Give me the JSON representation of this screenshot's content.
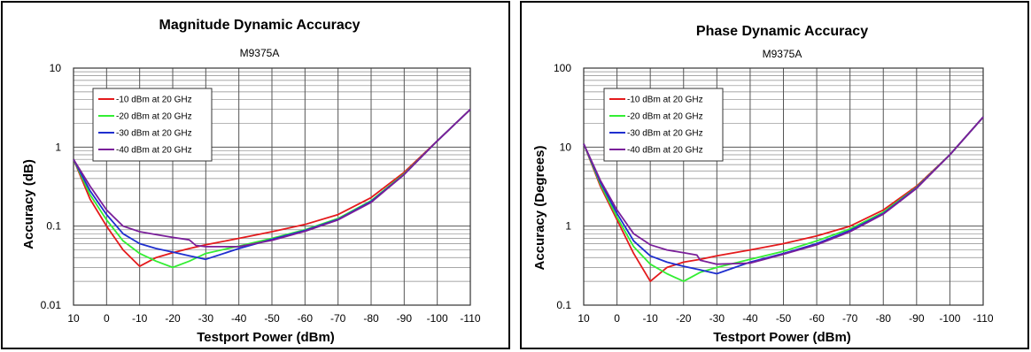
{
  "chart_data": [
    {
      "type": "line",
      "title": "Magnitude Dynamic Accuracy",
      "subtitle": "M9375A",
      "xlabel": "Testport Power (dBm)",
      "ylabel": "Accuracy (dB)",
      "xlim": [
        10,
        -110
      ],
      "ylim": [
        0.01,
        10
      ],
      "yscale": "log",
      "grid": true,
      "legend_position": "top-left",
      "x_ticks": [
        "10",
        "0",
        "-10",
        "-20",
        "-30",
        "-40",
        "-50",
        "-60",
        "-70",
        "-80",
        "-90",
        "-100",
        "-110"
      ],
      "y_ticks": [
        "10",
        "1",
        "0.1",
        "0.01"
      ],
      "series": [
        {
          "name": "-10 dBm at 20 GHz",
          "color": "#e41a1c",
          "x": [
            10,
            5,
            0,
            -5,
            -10,
            -15,
            -20,
            -25,
            -30,
            -40,
            -50,
            -60,
            -70,
            -80,
            -90,
            -100,
            -110
          ],
          "y": [
            0.7,
            0.22,
            0.1,
            0.05,
            0.031,
            0.04,
            0.046,
            0.052,
            0.058,
            0.07,
            0.085,
            0.105,
            0.14,
            0.23,
            0.48,
            1.2,
            3.0
          ]
        },
        {
          "name": "-20 dBm at 20 GHz",
          "color": "#33ee33",
          "x": [
            10,
            5,
            0,
            -5,
            -10,
            -15,
            -20,
            -25,
            -30,
            -40,
            -50,
            -60,
            -70,
            -80,
            -90,
            -100,
            -110
          ],
          "y": [
            0.7,
            0.25,
            0.12,
            0.065,
            0.045,
            0.036,
            0.03,
            0.036,
            0.045,
            0.056,
            0.07,
            0.09,
            0.125,
            0.21,
            0.46,
            1.2,
            3.0
          ]
        },
        {
          "name": "-30 dBm at 20 GHz",
          "color": "#1f2fcf",
          "x": [
            10,
            5,
            0,
            -5,
            -10,
            -15,
            -20,
            -25,
            -30,
            -40,
            -50,
            -60,
            -70,
            -80,
            -90,
            -100,
            -110
          ],
          "y": [
            0.7,
            0.28,
            0.14,
            0.08,
            0.06,
            0.052,
            0.047,
            0.042,
            0.038,
            0.052,
            0.068,
            0.088,
            0.122,
            0.205,
            0.45,
            1.2,
            3.0
          ]
        },
        {
          "name": "-40 dBm at 20 GHz",
          "color": "#7a1f9a",
          "x": [
            10,
            5,
            0,
            -5,
            -10,
            -15,
            -20,
            -25,
            -27,
            -30,
            -40,
            -50,
            -60,
            -70,
            -80,
            -90,
            -100,
            -110
          ],
          "y": [
            0.7,
            0.32,
            0.16,
            0.1,
            0.085,
            0.078,
            0.072,
            0.067,
            0.057,
            0.055,
            0.055,
            0.066,
            0.086,
            0.12,
            0.2,
            0.45,
            1.2,
            3.0
          ]
        }
      ]
    },
    {
      "type": "line",
      "title": "Phase Dynamic Accuracy",
      "subtitle": "M9375A",
      "xlabel": "Testport Power (dBm)",
      "ylabel": "Accuracy (Degrees)",
      "xlim": [
        10,
        -110
      ],
      "ylim": [
        0.1,
        100
      ],
      "yscale": "log",
      "grid": true,
      "legend_position": "top-left",
      "x_ticks": [
        "10",
        "0",
        "-10",
        "-20",
        "-30",
        "-40",
        "-50",
        "-60",
        "-70",
        "-80",
        "-90",
        "-100",
        "-110"
      ],
      "y_ticks": [
        "100",
        "10",
        "1",
        "0.1"
      ],
      "series": [
        {
          "name": "-10 dBm at 20 GHz",
          "color": "#e41a1c",
          "x": [
            10,
            5,
            0,
            -5,
            -10,
            -15,
            -20,
            -25,
            -30,
            -40,
            -50,
            -60,
            -70,
            -80,
            -90,
            -100,
            -110
          ],
          "y": [
            11,
            3.2,
            1.2,
            0.45,
            0.2,
            0.3,
            0.35,
            0.38,
            0.42,
            0.5,
            0.6,
            0.75,
            1.0,
            1.6,
            3.2,
            8.0,
            24.0
          ]
        },
        {
          "name": "-20 dBm at 20 GHz",
          "color": "#33ee33",
          "x": [
            10,
            5,
            0,
            -5,
            -10,
            -15,
            -20,
            -25,
            -30,
            -40,
            -50,
            -60,
            -70,
            -80,
            -90,
            -100,
            -110
          ],
          "y": [
            11,
            3.4,
            1.3,
            0.55,
            0.33,
            0.25,
            0.2,
            0.26,
            0.3,
            0.38,
            0.48,
            0.65,
            0.92,
            1.5,
            3.1,
            8.0,
            24.0
          ]
        },
        {
          "name": "-30 dBm at 20 GHz",
          "color": "#1f2fcf",
          "x": [
            10,
            5,
            0,
            -5,
            -10,
            -15,
            -20,
            -25,
            -30,
            -40,
            -50,
            -60,
            -70,
            -80,
            -90,
            -100,
            -110
          ],
          "y": [
            11,
            3.6,
            1.45,
            0.65,
            0.42,
            0.35,
            0.31,
            0.28,
            0.25,
            0.35,
            0.45,
            0.6,
            0.88,
            1.45,
            3.05,
            8.0,
            24.0
          ]
        },
        {
          "name": "-40 dBm at 20 GHz",
          "color": "#7a1f9a",
          "x": [
            10,
            5,
            0,
            -5,
            -10,
            -15,
            -20,
            -24,
            -25,
            -30,
            -40,
            -50,
            -60,
            -70,
            -80,
            -90,
            -100,
            -110
          ],
          "y": [
            11,
            3.8,
            1.6,
            0.8,
            0.58,
            0.5,
            0.46,
            0.43,
            0.37,
            0.33,
            0.34,
            0.44,
            0.58,
            0.85,
            1.42,
            3.0,
            8.0,
            24.0
          ]
        }
      ]
    }
  ]
}
